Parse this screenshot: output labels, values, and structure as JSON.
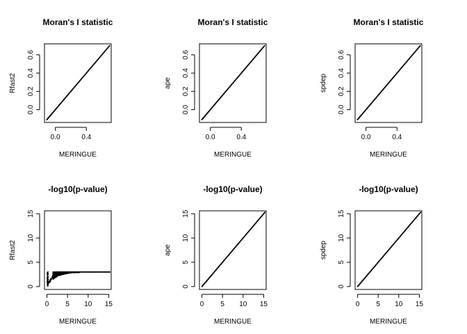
{
  "chart_data": [
    {
      "type": "scatter",
      "title": "Moran's I statistic",
      "xlabel": "MERINGUE",
      "ylabel": "Rfast2",
      "xlim": [
        -0.14,
        0.72
      ],
      "ylim": [
        -0.14,
        0.72
      ],
      "xticks": [
        0.0,
        0.4
      ],
      "xtick_labels": [
        "0.0",
        "0.4"
      ],
      "yticks": [
        0.0,
        0.2,
        0.4,
        0.6
      ],
      "ytick_labels": [
        "0.0",
        "0.2",
        "0.4",
        "0.6"
      ],
      "pattern": "identity",
      "x_range": [
        -0.11,
        0.7
      ]
    },
    {
      "type": "scatter",
      "title": "Moran's I statistic",
      "xlabel": "MERINGUE",
      "ylabel": "ape",
      "xlim": [
        -0.14,
        0.72
      ],
      "ylim": [
        -0.14,
        0.72
      ],
      "xticks": [
        0.0,
        0.4
      ],
      "xtick_labels": [
        "0.0",
        "0.4"
      ],
      "yticks": [
        0.0,
        0.2,
        0.4,
        0.6
      ],
      "ytick_labels": [
        "0.0",
        "0.2",
        "0.4",
        "0.6"
      ],
      "pattern": "identity",
      "x_range": [
        -0.11,
        0.7
      ]
    },
    {
      "type": "scatter",
      "title": "Moran's I statistic",
      "xlabel": "MERINGUE",
      "ylabel": "spdep",
      "xlim": [
        -0.14,
        0.72
      ],
      "ylim": [
        -0.14,
        0.72
      ],
      "xticks": [
        0.0,
        0.4
      ],
      "xtick_labels": [
        "0.0",
        "0.4"
      ],
      "yticks": [
        0.0,
        0.2,
        0.4,
        0.6
      ],
      "ytick_labels": [
        "0.0",
        "0.2",
        "0.4",
        "0.6"
      ],
      "pattern": "identity",
      "x_range": [
        -0.11,
        0.7
      ]
    },
    {
      "type": "scatter",
      "title": "-log10(p-value)",
      "xlabel": "MERINGUE",
      "ylabel": "Rfast2",
      "xlim": [
        -0.6,
        15.6
      ],
      "ylim": [
        -0.6,
        15.6
      ],
      "xticks": [
        0,
        5,
        10,
        15
      ],
      "xtick_labels": [
        "0",
        "5",
        "10",
        "15"
      ],
      "yticks": [
        0,
        5,
        10,
        15
      ],
      "ytick_labels": [
        "0",
        "5",
        "10",
        "15"
      ],
      "pattern": "saturating",
      "x_range": [
        0,
        15.3
      ],
      "y_cap": 3.0
    },
    {
      "type": "scatter",
      "title": "-log10(p-value)",
      "xlabel": "MERINGUE",
      "ylabel": "ape",
      "xlim": [
        -0.6,
        15.6
      ],
      "ylim": [
        -0.6,
        15.6
      ],
      "xticks": [
        0,
        5,
        10,
        15
      ],
      "xtick_labels": [
        "0",
        "5",
        "10",
        "15"
      ],
      "yticks": [
        0,
        5,
        10,
        15
      ],
      "ytick_labels": [
        "0",
        "5",
        "10",
        "15"
      ],
      "pattern": "identity",
      "x_range": [
        0,
        15.3
      ]
    },
    {
      "type": "scatter",
      "title": "-log10(p-value)",
      "xlabel": "MERINGUE",
      "ylabel": "spdep",
      "xlim": [
        -0.6,
        15.6
      ],
      "ylim": [
        -0.6,
        15.6
      ],
      "xticks": [
        0,
        5,
        10,
        15
      ],
      "xtick_labels": [
        "0",
        "5",
        "10",
        "15"
      ],
      "yticks": [
        0,
        5,
        10,
        15
      ],
      "ytick_labels": [
        "0",
        "5",
        "10",
        "15"
      ],
      "pattern": "identity",
      "x_range": [
        0,
        15.3
      ]
    }
  ]
}
